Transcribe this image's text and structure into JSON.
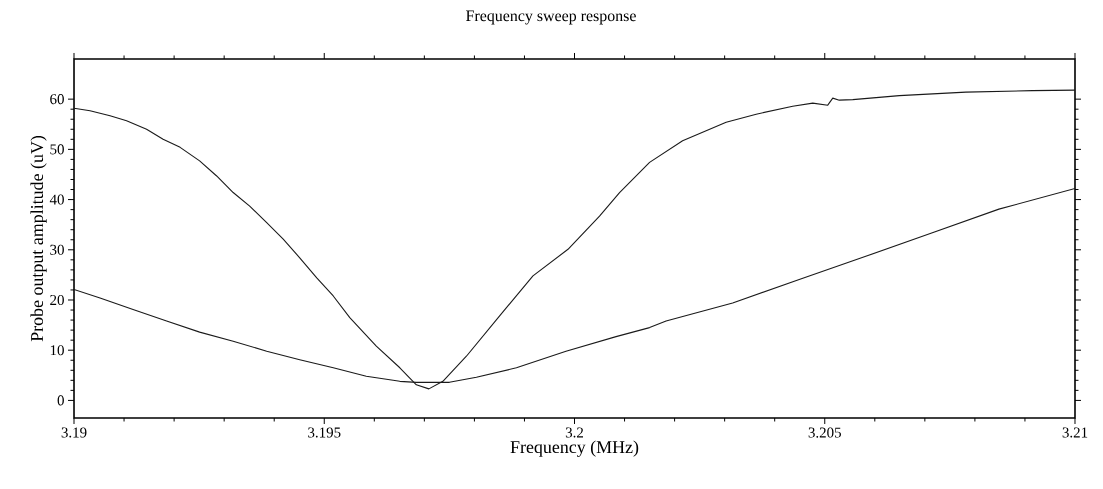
{
  "chart_data": {
    "type": "line",
    "title": "Frequency sweep response",
    "xlabel": "Frequency (MHz)",
    "ylabel": "Probe output amplitude  (uV)",
    "xlim": [
      3.19,
      3.21
    ],
    "ylim": [
      -3.5,
      68
    ],
    "xticks": [
      3.19,
      3.195,
      3.2,
      3.205,
      3.21
    ],
    "yticks": [
      0,
      10,
      20,
      30,
      40,
      50,
      60
    ],
    "marker": "none",
    "line_style": "solid",
    "series": [
      {
        "color": "#1a1a1a",
        "x": [
          3.19,
          3.19032,
          3.19072,
          3.19105,
          3.19145,
          3.19178,
          3.19212,
          3.19251,
          3.19285,
          3.19318,
          3.19351,
          3.19385,
          3.19418,
          3.19451,
          3.19485,
          3.19518,
          3.19551,
          3.19604,
          3.19651,
          3.19684,
          3.19709,
          3.19737,
          3.19784,
          3.1985,
          3.19917,
          3.19987,
          3.2005,
          3.2009,
          3.2015,
          3.20216,
          3.20303,
          3.20363,
          3.20436,
          3.20476,
          3.20506,
          3.20516,
          3.20529,
          3.20556,
          3.20649,
          3.20782,
          3.20915,
          3.21
        ],
        "values": [
          58.2,
          57.7,
          56.7,
          55.7,
          54.0,
          52.0,
          50.4,
          47.7,
          44.7,
          41.4,
          38.7,
          35.4,
          32.1,
          28.4,
          24.4,
          20.8,
          16.5,
          10.8,
          6.5,
          3.1,
          2.3,
          3.8,
          8.8,
          16.8,
          24.8,
          30.1,
          36.7,
          41.4,
          47.4,
          51.7,
          55.4,
          57.0,
          58.6,
          59.2,
          58.8,
          60.2,
          59.8,
          59.9,
          60.7,
          61.4,
          61.7,
          61.8
        ]
      },
      {
        "color": "#1a1a1a",
        "x": [
          3.19,
          3.19052,
          3.19118,
          3.19185,
          3.19251,
          3.19318,
          3.19385,
          3.19451,
          3.19518,
          3.19584,
          3.19651,
          3.19684,
          3.1975,
          3.19804,
          3.19884,
          3.19983,
          3.20083,
          3.2015,
          3.20183,
          3.20316,
          3.20449,
          3.20582,
          3.20715,
          3.20848,
          3.21
        ],
        "values": [
          22.1,
          20.4,
          18.1,
          15.8,
          13.6,
          11.8,
          9.8,
          8.1,
          6.5,
          4.8,
          3.8,
          3.6,
          3.6,
          4.6,
          6.5,
          9.8,
          12.7,
          14.5,
          15.8,
          19.4,
          24.1,
          28.7,
          33.4,
          38.1,
          42.2
        ]
      }
    ]
  }
}
